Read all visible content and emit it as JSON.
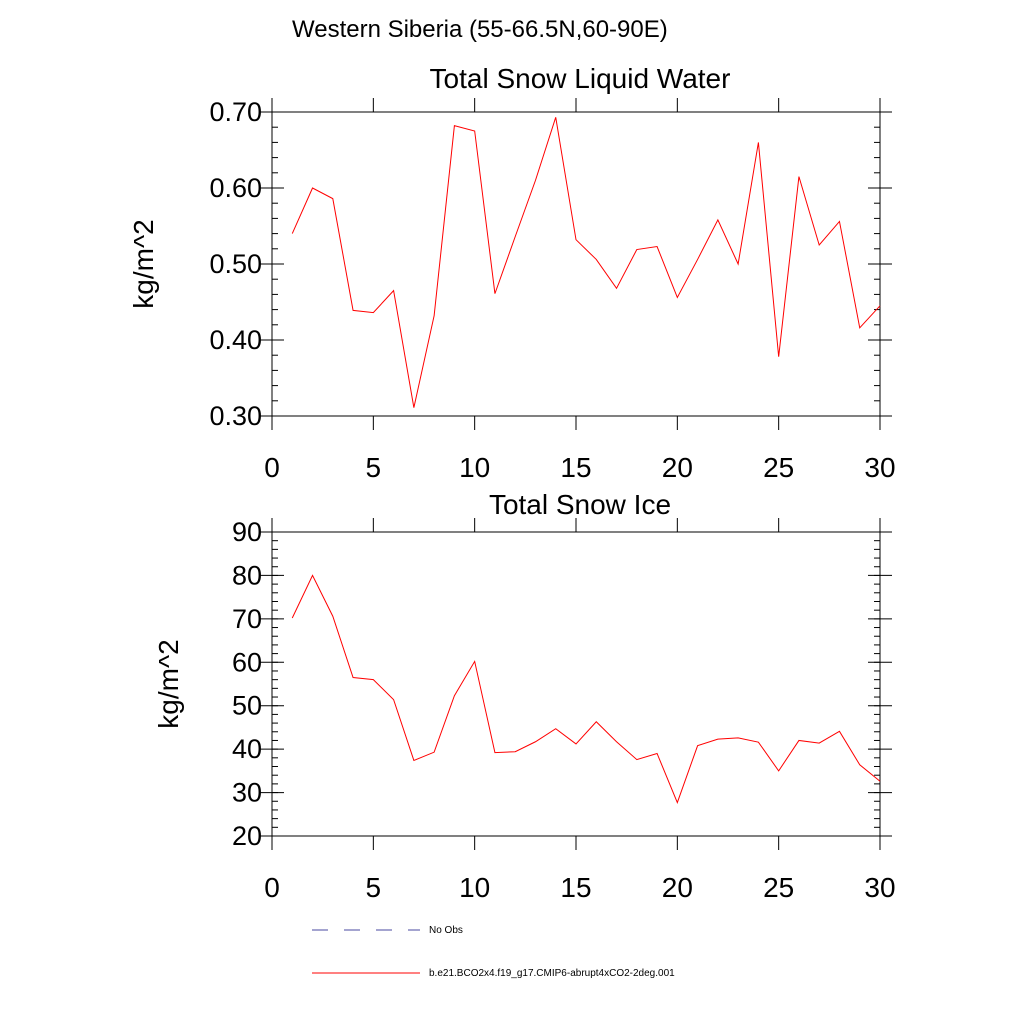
{
  "page": {
    "title": "Western Siberia (55-66.5N,60-90E)"
  },
  "colors": {
    "model": "#ff0000",
    "obs": "#4a4aa0",
    "axis": "#000000"
  },
  "legend": {
    "obs_label": "No Obs",
    "model_label": "b.e21.BCO2x4.f19_g17.CMIP6-abrupt4xCO2-2deg.001"
  },
  "chart_data": [
    {
      "type": "line",
      "title": "Total Snow Liquid Water",
      "xlabel": "",
      "ylabel": "kg/m^2",
      "xlim": [
        0,
        30
      ],
      "ylim": [
        0.3,
        0.7
      ],
      "xticks": [
        0,
        5,
        10,
        15,
        20,
        25,
        30
      ],
      "yticks": [
        0.3,
        0.4,
        0.5,
        0.6,
        0.7
      ],
      "ytick_labels": [
        "0.30",
        "0.40",
        "0.50",
        "0.60",
        "0.70"
      ],
      "yminor_step": 0.02,
      "series": [
        {
          "name": "b.e21.BCO2x4.f19_g17.CMIP6-abrupt4xCO2-2deg.001",
          "x": [
            1,
            2,
            3,
            4,
            5,
            6,
            7,
            8,
            9,
            10,
            11,
            12,
            13,
            14,
            15,
            16,
            17,
            18,
            19,
            20,
            21,
            22,
            23,
            24,
            25,
            26,
            27,
            28,
            29,
            30
          ],
          "values": [
            0.54,
            0.6,
            0.586,
            0.439,
            0.436,
            0.465,
            0.311,
            0.432,
            0.682,
            0.675,
            0.461,
            0.536,
            0.61,
            0.693,
            0.532,
            0.506,
            0.468,
            0.519,
            0.523,
            0.456,
            0.506,
            0.558,
            0.5,
            0.66,
            0.378,
            0.615,
            0.525,
            0.556,
            0.416,
            0.445
          ]
        }
      ]
    },
    {
      "type": "line",
      "title": "Total Snow Ice",
      "xlabel": "",
      "ylabel": "kg/m^2",
      "xlim": [
        0,
        30
      ],
      "ylim": [
        20,
        90
      ],
      "xticks": [
        0,
        5,
        10,
        15,
        20,
        25,
        30
      ],
      "yticks": [
        20,
        30,
        40,
        50,
        60,
        70,
        80,
        90
      ],
      "ytick_labels": [
        "20",
        "30",
        "40",
        "50",
        "60",
        "70",
        "80",
        "90"
      ],
      "yminor_step": 2,
      "series": [
        {
          "name": "b.e21.BCO2x4.f19_g17.CMIP6-abrupt4xCO2-2deg.001",
          "x": [
            1,
            2,
            3,
            4,
            5,
            6,
            7,
            8,
            9,
            10,
            11,
            12,
            13,
            14,
            15,
            16,
            17,
            18,
            19,
            20,
            21,
            22,
            23,
            24,
            25,
            26,
            27,
            28,
            29,
            30
          ],
          "values": [
            70.2,
            80.0,
            70.6,
            56.5,
            56.0,
            51.4,
            37.4,
            39.3,
            52.3,
            60.2,
            39.2,
            39.4,
            41.7,
            44.7,
            41.2,
            46.3,
            41.7,
            37.6,
            39.0,
            27.7,
            40.8,
            42.3,
            42.6,
            41.6,
            35.0,
            42.0,
            41.4,
            44.1,
            36.4,
            32.6
          ]
        }
      ]
    }
  ]
}
